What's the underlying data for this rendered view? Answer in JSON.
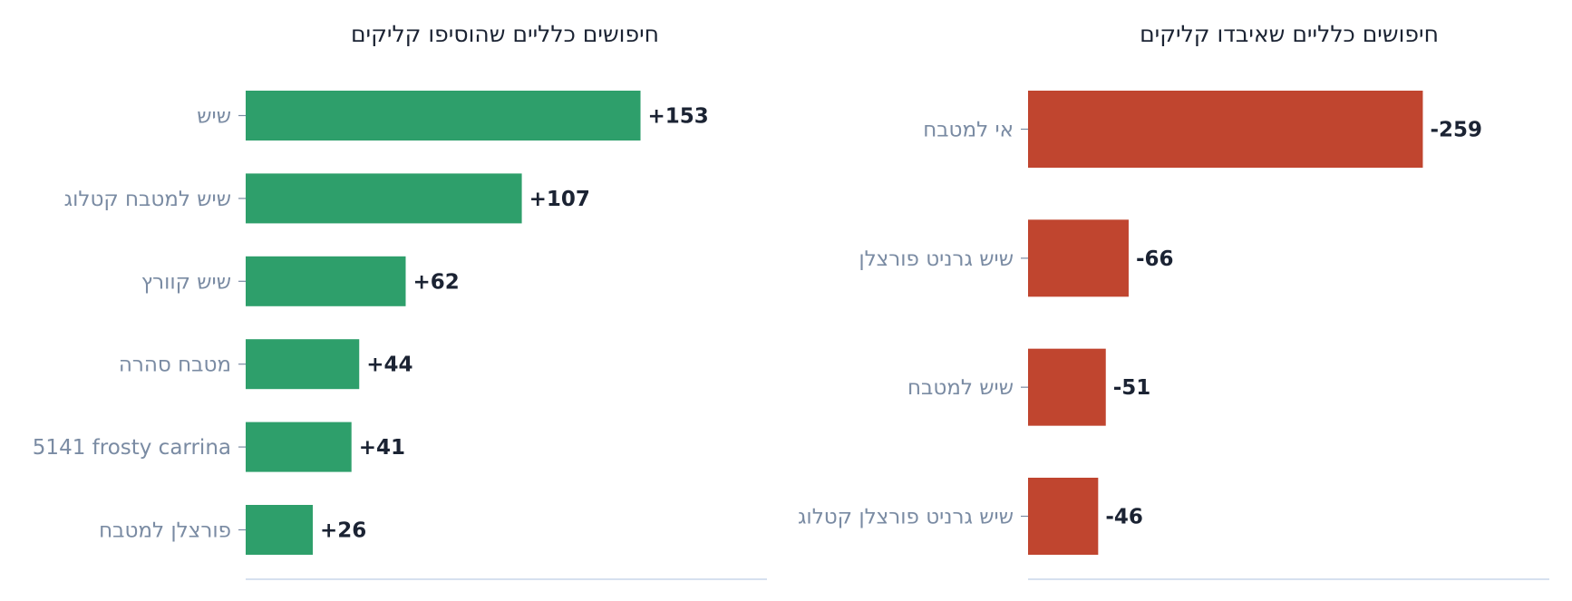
{
  "chart_data": [
    {
      "type": "bar",
      "orientation": "horizontal",
      "title": "חיפושים כלליים שהוסיפו קליקים",
      "categories": [
        "שיש",
        "שיש למטבח קטלוג",
        "שיש קוורץ",
        "מטבח סהרה",
        "5141 frosty carrina",
        "פורצלן למטבח"
      ],
      "values": [
        153,
        107,
        62,
        44,
        41,
        26
      ],
      "labels": [
        "+153",
        "+107",
        "+62",
        "+44",
        "+41",
        "+26"
      ],
      "color": "#2e9f6b",
      "grid": false,
      "xlim": [
        0,
        202
      ]
    },
    {
      "type": "bar",
      "orientation": "horizontal",
      "title": "חיפושים כלליים שאיבדו קליקים",
      "categories": [
        "אי למטבח",
        "שיש גרניט פורצלן",
        "שיש למטבח",
        "שיש גרניט פורצלן קטלוג"
      ],
      "values": [
        259,
        66,
        51,
        46
      ],
      "labels": [
        "-259",
        "-66",
        "-51",
        "-46"
      ],
      "color": "#c0452f",
      "grid": false,
      "xlim": [
        0,
        342
      ]
    }
  ],
  "colors": {
    "title": "#1b2333",
    "tick_label": "#7a8ba3",
    "value_label": "#1b2333",
    "axis": "#c9d6ea"
  }
}
